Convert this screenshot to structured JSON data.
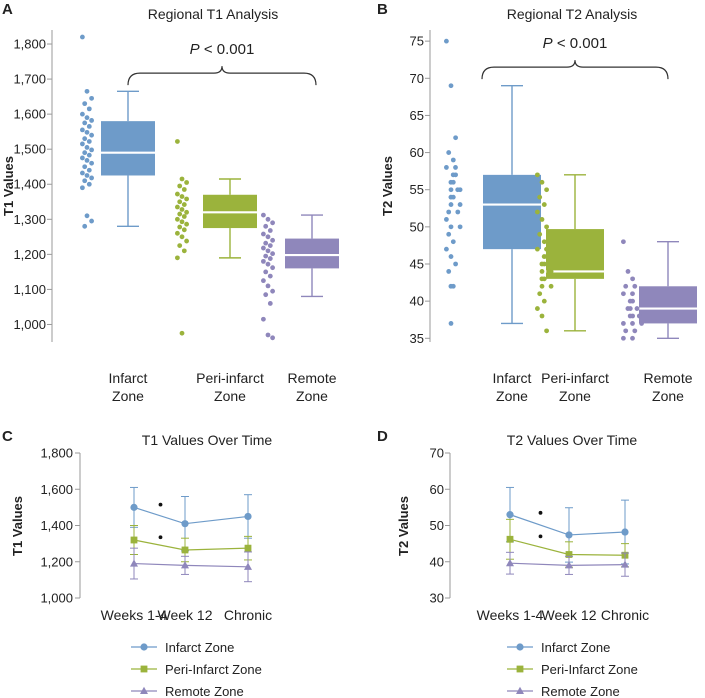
{
  "colors": {
    "infarct": "#6e9bc9",
    "peri": "#9bb33c",
    "remote": "#8f87bb",
    "axis": "#9a9a9a",
    "text": "#222222"
  },
  "chart_data": [
    {
      "panel": "A",
      "type": "box",
      "title": "Regional T1 Analysis",
      "ylabel": "T1 Values",
      "ylim": [
        950,
        1840
      ],
      "yticks": [
        1000,
        1100,
        1200,
        1300,
        1400,
        1500,
        1600,
        1700,
        1800
      ],
      "ytick_labels": [
        "1,000",
        "1,100",
        "1,200",
        "1,300",
        "1,400",
        "1,500",
        "1,600",
        "1,700",
        "1,800"
      ],
      "significance": {
        "label": "P < 0.001",
        "bracket_y": 1717
      },
      "categories": [
        {
          "label": [
            "Infarct",
            "Zone"
          ],
          "color_key": "infarct",
          "min": 1280,
          "q1": 1425,
          "median": 1490,
          "q3": 1580,
          "max": 1665,
          "points": [
            1820,
            1665,
            1645,
            1630,
            1615,
            1600,
            1590,
            1582,
            1575,
            1565,
            1555,
            1548,
            1540,
            1530,
            1522,
            1515,
            1505,
            1498,
            1490,
            1483,
            1475,
            1468,
            1460,
            1450,
            1440,
            1432,
            1425,
            1418,
            1410,
            1400,
            1390,
            1310,
            1295,
            1280
          ]
        },
        {
          "label": [
            "Peri-infarct",
            "Zone"
          ],
          "color_key": "peri",
          "min": 1190,
          "q1": 1275,
          "median": 1320,
          "q3": 1370,
          "max": 1415,
          "points": [
            1522,
            1415,
            1405,
            1395,
            1385,
            1372,
            1365,
            1358,
            1350,
            1342,
            1335,
            1328,
            1320,
            1315,
            1308,
            1300,
            1293,
            1286,
            1278,
            1270,
            1260,
            1250,
            1238,
            1225,
            1210,
            1190,
            975
          ]
        },
        {
          "label": [
            "Remote",
            "Zone"
          ],
          "color_key": "remote",
          "min": 1080,
          "q1": 1160,
          "median": 1198,
          "q3": 1245,
          "max": 1312,
          "points": [
            1312,
            1300,
            1290,
            1280,
            1268,
            1258,
            1250,
            1240,
            1232,
            1225,
            1218,
            1210,
            1202,
            1195,
            1188,
            1180,
            1172,
            1162,
            1150,
            1138,
            1125,
            1110,
            1095,
            1085,
            1060,
            1015,
            970,
            962
          ]
        }
      ]
    },
    {
      "panel": "B",
      "type": "box",
      "title": "Regional T2 Analysis",
      "ylabel": "T2 Values",
      "ylim": [
        34.5,
        76.5
      ],
      "yticks": [
        35,
        40,
        45,
        50,
        55,
        60,
        65,
        70,
        75
      ],
      "ytick_labels": [
        "35",
        "40",
        "45",
        "50",
        "55",
        "60",
        "65",
        "70",
        "75"
      ],
      "significance": {
        "label": "P < 0.001",
        "bracket_y": 71.5
      },
      "categories": [
        {
          "label": [
            "Infarct",
            "Zone"
          ],
          "color_key": "infarct",
          "min": 37,
          "q1": 47,
          "median": 53,
          "q3": 57,
          "max": 69,
          "points": [
            75,
            69,
            62,
            60,
            59,
            58,
            58,
            57,
            57,
            56,
            56,
            55,
            55,
            55,
            54,
            54,
            53,
            53,
            52,
            52,
            51,
            50,
            50,
            49,
            48,
            47,
            46,
            45,
            44,
            42,
            42,
            37
          ]
        },
        {
          "label": [
            "Peri-infarct",
            "Zone"
          ],
          "color_key": "peri",
          "min": 36,
          "q1": 43,
          "median": 44,
          "q3": 49.7,
          "max": 57,
          "points": [
            57,
            56,
            55,
            54,
            53,
            52,
            51,
            50,
            49,
            48,
            47,
            47,
            46,
            46,
            45,
            45,
            44,
            44,
            44,
            43,
            43,
            42,
            42,
            41,
            40,
            39,
            38,
            36
          ]
        },
        {
          "label": [
            "Remote",
            "Zone"
          ],
          "color_key": "remote",
          "min": 35,
          "q1": 37,
          "median": 39,
          "q3": 42,
          "max": 48,
          "points": [
            48,
            44,
            43,
            42,
            42,
            41,
            41,
            40,
            40,
            39,
            39,
            39,
            38,
            38,
            38,
            37,
            37,
            37,
            36,
            36,
            35,
            35
          ]
        }
      ]
    },
    {
      "panel": "C",
      "type": "line",
      "title": "T1 Values Over Time",
      "ylabel": "T1 Values",
      "ylim": [
        1000,
        1800
      ],
      "yticks": [
        1000,
        1200,
        1400,
        1600,
        1800
      ],
      "ytick_labels": [
        "1,000",
        "1,200",
        "1,400",
        "1,600",
        "1,800"
      ],
      "x": [
        "Weeks 1-4",
        "Week 12",
        "Chronic"
      ],
      "markers": [
        1515,
        1335
      ],
      "series": [
        {
          "name": "Infarct Zone",
          "color_key": "infarct",
          "marker": "circle",
          "values": [
            1500,
            1410,
            1450
          ],
          "errors": [
            110,
            150,
            120
          ]
        },
        {
          "name": "Peri-Infarct Zone",
          "color_key": "peri",
          "marker": "square",
          "values": [
            1320,
            1265,
            1275
          ],
          "errors": [
            80,
            65,
            65
          ]
        },
        {
          "name": "Remote Zone",
          "color_key": "remote",
          "marker": "triangle",
          "values": [
            1190,
            1180,
            1172
          ],
          "errors": [
            85,
            50,
            82
          ]
        }
      ]
    },
    {
      "panel": "D",
      "type": "line",
      "title": "T2 Values Over Time",
      "ylabel": "T2 Values",
      "ylim": [
        30,
        70
      ],
      "yticks": [
        30,
        40,
        50,
        60,
        70
      ],
      "ytick_labels": [
        "30",
        "40",
        "50",
        "60",
        "70"
      ],
      "x": [
        "Weeks 1-4",
        "Week 12",
        "Chronic"
      ],
      "markers": [
        53.5,
        47
      ],
      "series": [
        {
          "name": "Infarct Zone",
          "color_key": "infarct",
          "marker": "circle",
          "values": [
            53,
            47.4,
            48.2
          ],
          "errors": [
            7.5,
            7.5,
            8.8
          ]
        },
        {
          "name": "Peri-Infarct Zone",
          "color_key": "peri",
          "marker": "square",
          "values": [
            46.2,
            42,
            41.8
          ],
          "errors": [
            5.5,
            3.5,
            3.2
          ]
        },
        {
          "name": "Remote Zone",
          "color_key": "remote",
          "marker": "triangle",
          "values": [
            39.6,
            39,
            39.2
          ],
          "errors": [
            3.0,
            2.5,
            3.2
          ]
        }
      ]
    }
  ]
}
